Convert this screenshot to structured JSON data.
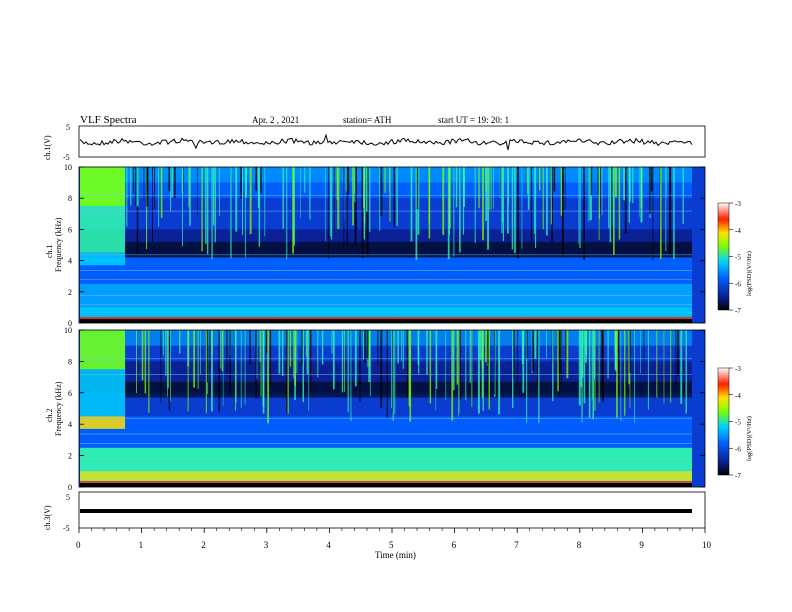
{
  "header": {
    "title": "VLF  Spectra",
    "date": "Apr. 2  , 2021",
    "station": "station= ATH",
    "start": "start  UT  =    19: 20: 1"
  },
  "chart_data": [
    {
      "type": "line",
      "panel": "ch1-waveform",
      "ylabel": "ch.1(V)",
      "ylim": [
        -5,
        5
      ],
      "yticks": [
        "5",
        "-5"
      ],
      "x_range_min": [
        0,
        9.8
      ],
      "description_level": "noisy trace near 0 V"
    },
    {
      "type": "heatmap",
      "panel": "ch1-spectrogram",
      "ylabel_line1": "ch.1",
      "ylabel_line2": "Frequency  (kHz)",
      "ylim": [
        0,
        10
      ],
      "yticks": [
        "0",
        "2",
        "4",
        "6",
        "8",
        "10"
      ],
      "colorbar": {
        "label": "log(PSD)(V²/Hz)",
        "range": [
          -7,
          -3
        ],
        "ticks": [
          "-3",
          "-4",
          "-5",
          "-6",
          "-7"
        ],
        "colors": [
          "#000000",
          "#0a1f8f",
          "#0060ff",
          "#00d0ff",
          "#80ff00",
          "#ffe000",
          "#ff2000",
          "#ffffff"
        ]
      }
    },
    {
      "type": "heatmap",
      "panel": "ch2-spectrogram",
      "ylabel_line1": "ch.2",
      "ylabel_line2": "Frequency  (kHz)",
      "ylim": [
        0,
        10
      ],
      "yticks": [
        "0",
        "2",
        "4",
        "6",
        "8",
        "10"
      ],
      "colorbar": {
        "label": "log(PSD)(V²/Hz)",
        "range": [
          -7,
          -3
        ],
        "ticks": [
          "-3",
          "-4",
          "-5",
          "-6",
          "-7"
        ]
      }
    },
    {
      "type": "line",
      "panel": "ch3-waveform",
      "ylabel": "ch.3(V)",
      "ylim": [
        -5,
        5
      ],
      "yticks": [
        "5",
        "-5"
      ],
      "level": -1
    }
  ],
  "xaxis": {
    "label": "Time  (min)",
    "range": [
      0,
      10
    ],
    "ticks": [
      "0",
      "1",
      "2",
      "3",
      "4",
      "5",
      "6",
      "7",
      "8",
      "9",
      "10"
    ]
  }
}
